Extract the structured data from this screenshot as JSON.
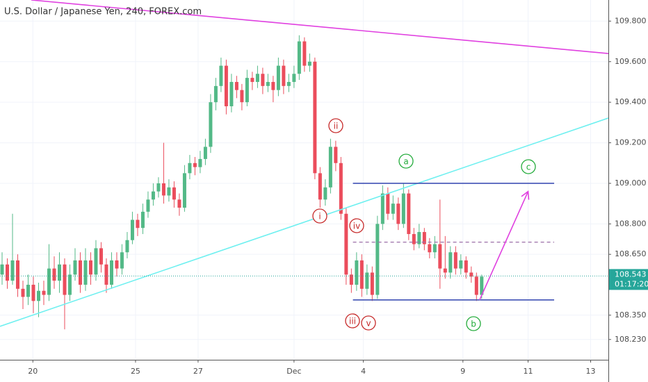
{
  "chart_data": {
    "type": "candlestick",
    "title": "U.S. Dollar / Japanese Yen, 240, FOREX.com",
    "up_color": "#53b987",
    "down_color": "#eb4d5c",
    "grid": true,
    "xlim": [
      -0.4,
      116.3
    ],
    "xticks": [
      {
        "value": 5.9,
        "label": "20"
      },
      {
        "value": 25.6,
        "label": "25"
      },
      {
        "value": 37.6,
        "label": "27"
      },
      {
        "value": 56,
        "label": "Dec"
      },
      {
        "value": 69.3,
        "label": "4"
      },
      {
        "value": 88.4,
        "label": "9"
      },
      {
        "value": 100.9,
        "label": "11"
      },
      {
        "value": 112.9,
        "label": "13"
      }
    ],
    "ylim": [
      108.13,
      109.904
    ],
    "yticks": [
      {
        "value": 109.8,
        "label": "109.800"
      },
      {
        "value": 109.6,
        "label": "109.600"
      },
      {
        "value": 109.4,
        "label": "109.400"
      },
      {
        "value": 109.2,
        "label": "109.200"
      },
      {
        "value": 109.0,
        "label": "109.000"
      },
      {
        "value": 108.8,
        "label": "108.800"
      },
      {
        "value": 108.65,
        "label": "108.650"
      },
      {
        "value": 108.35,
        "label": "108.350"
      },
      {
        "value": 108.23,
        "label": "108.230"
      }
    ],
    "candles": [
      [
        108.55,
        108.66,
        108.5,
        108.6
      ],
      [
        108.6,
        108.63,
        108.48,
        108.52
      ],
      [
        108.52,
        108.85,
        108.5,
        108.62
      ],
      [
        108.62,
        108.65,
        108.44,
        108.48
      ],
      [
        108.48,
        108.52,
        108.38,
        108.44
      ],
      [
        108.44,
        108.55,
        108.4,
        108.5
      ],
      [
        108.5,
        108.54,
        108.36,
        108.42
      ],
      [
        108.42,
        108.51,
        108.34,
        108.47
      ],
      [
        108.47,
        108.52,
        108.4,
        108.45
      ],
      [
        108.45,
        108.7,
        108.42,
        108.58
      ],
      [
        108.58,
        108.64,
        108.48,
        108.52
      ],
      [
        108.52,
        108.66,
        108.46,
        108.6
      ],
      [
        108.6,
        108.63,
        108.28,
        108.45
      ],
      [
        108.45,
        108.6,
        108.42,
        108.55
      ],
      [
        108.55,
        108.68,
        108.52,
        108.62
      ],
      [
        108.62,
        108.66,
        108.46,
        108.5
      ],
      [
        108.5,
        108.68,
        108.47,
        108.62
      ],
      [
        108.62,
        108.66,
        108.5,
        108.55
      ],
      [
        108.55,
        108.72,
        108.52,
        108.68
      ],
      [
        108.68,
        108.71,
        108.56,
        108.6
      ],
      [
        108.6,
        108.63,
        108.46,
        108.5
      ],
      [
        108.5,
        108.66,
        108.48,
        108.62
      ],
      [
        108.62,
        108.66,
        108.54,
        108.58
      ],
      [
        108.58,
        108.7,
        108.55,
        108.66
      ],
      [
        108.66,
        108.76,
        108.63,
        108.72
      ],
      [
        108.72,
        108.86,
        108.7,
        108.82
      ],
      [
        108.82,
        108.85,
        108.74,
        108.78
      ],
      [
        108.78,
        108.9,
        108.75,
        108.86
      ],
      [
        108.86,
        108.96,
        108.83,
        108.92
      ],
      [
        108.92,
        109.0,
        108.89,
        108.96
      ],
      [
        108.96,
        109.03,
        108.93,
        109.0
      ],
      [
        109.0,
        109.2,
        108.9,
        108.94
      ],
      [
        108.94,
        109.02,
        108.91,
        108.98
      ],
      [
        108.98,
        109.01,
        108.88,
        108.92
      ],
      [
        108.92,
        108.95,
        108.84,
        108.88
      ],
      [
        108.88,
        109.09,
        108.86,
        109.05
      ],
      [
        109.05,
        109.14,
        109.02,
        109.1
      ],
      [
        109.1,
        109.13,
        109.04,
        109.08
      ],
      [
        109.08,
        109.16,
        109.05,
        109.12
      ],
      [
        109.12,
        109.22,
        109.09,
        109.18
      ],
      [
        109.18,
        109.44,
        109.15,
        109.4
      ],
      [
        109.4,
        109.52,
        109.36,
        109.48
      ],
      [
        109.48,
        109.62,
        109.45,
        109.58
      ],
      [
        109.58,
        109.61,
        109.34,
        109.38
      ],
      [
        109.38,
        109.54,
        109.35,
        109.5
      ],
      [
        109.5,
        109.53,
        109.42,
        109.46
      ],
      [
        109.46,
        109.49,
        109.36,
        109.4
      ],
      [
        109.4,
        109.56,
        109.38,
        109.52
      ],
      [
        109.52,
        109.55,
        109.46,
        109.5
      ],
      [
        109.5,
        109.58,
        109.47,
        109.54
      ],
      [
        109.54,
        109.57,
        109.44,
        109.48
      ],
      [
        109.48,
        109.54,
        109.45,
        109.5
      ],
      [
        109.5,
        109.53,
        109.4,
        109.46
      ],
      [
        109.46,
        109.62,
        109.43,
        109.58
      ],
      [
        109.58,
        109.61,
        109.44,
        109.48
      ],
      [
        109.48,
        109.54,
        109.45,
        109.5
      ],
      [
        109.5,
        109.58,
        109.47,
        109.54
      ],
      [
        109.54,
        109.73,
        109.51,
        109.7
      ],
      [
        109.7,
        109.72,
        109.55,
        109.58
      ],
      [
        109.58,
        109.64,
        109.55,
        109.6
      ],
      [
        109.6,
        109.62,
        109.02,
        109.05
      ],
      [
        109.05,
        109.08,
        108.88,
        108.92
      ],
      [
        108.92,
        109.02,
        108.89,
        108.98
      ],
      [
        108.98,
        109.22,
        108.95,
        109.18
      ],
      [
        109.18,
        109.21,
        109.06,
        109.1
      ],
      [
        109.1,
        109.13,
        108.82,
        108.85
      ],
      [
        108.85,
        108.88,
        108.5,
        108.55
      ],
      [
        108.55,
        108.58,
        108.46,
        108.5
      ],
      [
        108.5,
        108.66,
        108.47,
        108.62
      ],
      [
        108.62,
        108.65,
        108.44,
        108.48
      ],
      [
        108.48,
        108.6,
        108.45,
        108.56
      ],
      [
        108.56,
        108.59,
        108.42,
        108.45
      ],
      [
        108.45,
        108.84,
        108.43,
        108.8
      ],
      [
        108.8,
        108.99,
        108.77,
        108.95
      ],
      [
        108.95,
        108.98,
        108.82,
        108.85
      ],
      [
        108.85,
        108.94,
        108.82,
        108.9
      ],
      [
        108.9,
        108.93,
        108.77,
        108.8
      ],
      [
        108.8,
        109.0,
        108.78,
        108.95
      ],
      [
        108.95,
        108.97,
        108.72,
        108.75
      ],
      [
        108.75,
        108.78,
        108.67,
        108.7
      ],
      [
        108.7,
        108.8,
        108.68,
        108.76
      ],
      [
        108.76,
        108.78,
        108.67,
        108.7
      ],
      [
        108.7,
        108.73,
        108.63,
        108.66
      ],
      [
        108.66,
        108.74,
        108.63,
        108.7
      ],
      [
        108.7,
        108.92,
        108.48,
        108.58
      ],
      [
        108.58,
        108.74,
        108.53,
        108.56
      ],
      [
        108.56,
        108.69,
        108.53,
        108.66
      ],
      [
        108.66,
        108.69,
        108.55,
        108.58
      ],
      [
        108.58,
        108.65,
        108.55,
        108.62
      ],
      [
        108.62,
        108.64,
        108.53,
        108.56
      ],
      [
        108.56,
        108.59,
        108.51,
        108.54
      ],
      [
        108.54,
        108.56,
        108.42,
        108.45
      ],
      [
        108.45,
        108.55,
        108.43,
        108.54
      ]
    ],
    "last_price": 108.543,
    "last_price_color": "#26a69a",
    "countdown": "01:17:20",
    "lines": [
      {
        "color": "#e040e0",
        "x": [
          5.6,
          116.3
        ],
        "y": [
          109.904,
          109.64
        ]
      },
      {
        "color": "#6ff0f0",
        "x": [
          -0.4,
          116.3
        ],
        "y": [
          108.295,
          109.322
        ]
      },
      {
        "color": "#3f51b5",
        "x": [
          67.3,
          105.9
        ],
        "y": [
          109.0,
          109.0
        ]
      },
      {
        "color": "#3f51b5",
        "x": [
          67.3,
          105.9
        ],
        "y": [
          108.425,
          108.425
        ]
      },
      {
        "color": "#9c6fa8",
        "dashed": true,
        "x": [
          67.3,
          105.9
        ],
        "y": [
          108.71,
          108.71
        ]
      },
      {
        "color": "#e040e0",
        "arrow": true,
        "x": [
          91.6,
          100.9
        ],
        "y": [
          108.425,
          108.96
        ]
      }
    ],
    "annotations": [
      {
        "label": "i",
        "color": "#c62828"
      },
      {
        "label": "ii",
        "color": "#c62828"
      },
      {
        "label": "iii",
        "color": "#c62828"
      },
      {
        "label": "iv",
        "color": "#c62828"
      },
      {
        "label": "v",
        "color": "#c62828"
      },
      {
        "label": "a",
        "color": "#22ab3a"
      },
      {
        "label": "b",
        "color": "#22ab3a"
      },
      {
        "label": "c",
        "color": "#22ab3a"
      }
    ]
  }
}
